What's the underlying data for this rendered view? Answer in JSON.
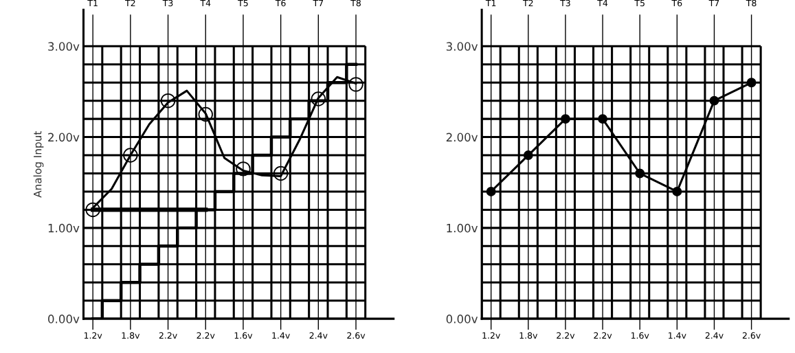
{
  "chart_data": [
    {
      "type": "line",
      "ylabel": "Analog Input",
      "ylim": [
        0,
        3.4
      ],
      "grid": true,
      "categories": [
        "T1",
        null,
        "T2",
        null,
        "T3",
        null,
        "T4",
        null,
        "T5",
        null,
        "T6",
        null,
        "T7",
        null,
        "T8"
      ],
      "yticks": [
        {
          "value": 0,
          "label": "0.00v"
        },
        {
          "value": 0.2,
          "label": null
        },
        {
          "value": 0.4,
          "label": null
        },
        {
          "value": 0.6,
          "label": null
        },
        {
          "value": 0.8,
          "label": null
        },
        {
          "value": 1.0,
          "label": "1.00v"
        },
        {
          "value": 1.2,
          "label": null
        },
        {
          "value": 1.4,
          "label": null
        },
        {
          "value": 1.6,
          "label": null
        },
        {
          "value": 1.8,
          "label": null
        },
        {
          "value": 2.0,
          "label": "2.00v"
        },
        {
          "value": 2.2,
          "label": null
        },
        {
          "value": 2.4,
          "label": null
        },
        {
          "value": 2.6,
          "label": null
        },
        {
          "value": 2.8,
          "label": null
        },
        {
          "value": 3.0,
          "label": "3.00v"
        }
      ],
      "annotations": [
        "1.2v",
        "1.8v",
        "2.2v",
        "2.2v",
        "1.6v",
        "1.4v",
        "2.4v",
        "2.6v"
      ],
      "series": [
        {
          "color": "#000000",
          "values": [
            1.22,
            1.43,
            1.8,
            2.14,
            2.38,
            2.51,
            2.26,
            1.77,
            1.63,
            1.58,
            1.57,
            1.97,
            2.43,
            2.66,
            2.59
          ]
        },
        {
          "type": "scatter",
          "color": "#000000",
          "marker": "circle",
          "x": [
            "T1",
            "T2",
            "T3",
            "T4",
            "T5",
            "T6",
            "T7",
            "T8"
          ],
          "values": [
            1.2,
            1.8,
            2.4,
            2.25,
            1.65,
            1.6,
            2.42,
            2.58
          ]
        },
        {
          "type": "step",
          "color": "#000000",
          "values": [
            0,
            0.2,
            0.4,
            0.6,
            0.8,
            1.0,
            1.2,
            1.4,
            1.6,
            1.8,
            2.0,
            2.2,
            2.4,
            2.6,
            2.8
          ]
        },
        {
          "type": "line",
          "color": "#000000",
          "values": [
            1.2,
            1.2,
            1.2,
            1.2,
            1.2,
            1.2,
            1.2,
            null,
            null,
            null,
            null,
            null,
            null,
            null,
            null
          ]
        }
      ]
    },
    {
      "type": "line",
      "ylim": [
        0,
        3.4
      ],
      "grid": true,
      "categories": [
        "T1",
        null,
        "T2",
        null,
        "T3",
        null,
        "T4",
        null,
        "T5",
        null,
        "T6",
        null,
        "T7",
        null,
        "T8"
      ],
      "yticks": [
        {
          "value": 0,
          "label": "0.00v"
        },
        {
          "value": 0.2,
          "label": null
        },
        {
          "value": 0.4,
          "label": null
        },
        {
          "value": 0.6,
          "label": null
        },
        {
          "value": 0.8,
          "label": null
        },
        {
          "value": 1.0,
          "label": "1.00v"
        },
        {
          "value": 1.2,
          "label": null
        },
        {
          "value": 1.4,
          "label": null
        },
        {
          "value": 1.6,
          "label": null
        },
        {
          "value": 1.8,
          "label": null
        },
        {
          "value": 2.0,
          "label": "2.00v"
        },
        {
          "value": 2.2,
          "label": null
        },
        {
          "value": 2.4,
          "label": null
        },
        {
          "value": 2.6,
          "label": null
        },
        {
          "value": 2.8,
          "label": null
        },
        {
          "value": 3.0,
          "label": "3.00v"
        }
      ],
      "annotations": [
        "1.2v",
        "1.8v",
        "2.2v",
        "2.2v",
        "1.6v",
        "1.4v",
        "2.4v",
        "2.6v"
      ],
      "series": [
        {
          "color": "#000000",
          "marker": "circle",
          "x": [
            "T1",
            "T2",
            "T3",
            "T4",
            "T5",
            "T6",
            "T7",
            "T8"
          ],
          "values": [
            1.4,
            1.8,
            2.2,
            2.2,
            1.6,
            1.4,
            2.4,
            2.6
          ]
        }
      ]
    }
  ]
}
